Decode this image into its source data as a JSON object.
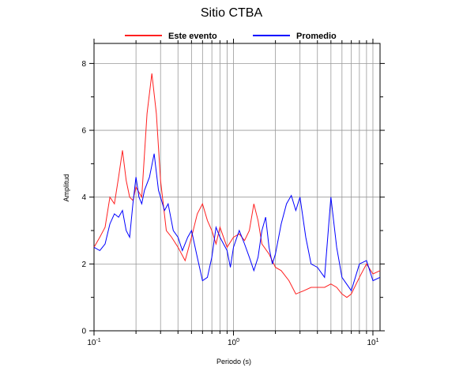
{
  "chart_data": {
    "type": "line",
    "title": "Sitio CTBA",
    "xlabel": "Periodo (s)",
    "ylabel": "Amplitud",
    "xscale": "log",
    "grid": true,
    "legend": "top",
    "xlim": [
      0.1,
      11.25
    ],
    "ylim": [
      0,
      8.6
    ],
    "xticks": [
      {
        "value": 0.1,
        "label": "10",
        "power": "-1"
      },
      {
        "value": 1,
        "label": "10",
        "power": "0"
      },
      {
        "value": 10,
        "label": "10",
        "power": "1"
      }
    ],
    "xminor": [
      0.2,
      0.3,
      0.4,
      0.5,
      0.6,
      0.7,
      0.8,
      0.9,
      2,
      3,
      4,
      5,
      6,
      7,
      8,
      9
    ],
    "yticks": [
      0,
      2,
      4,
      6,
      8
    ],
    "yminor": [
      1,
      3,
      5,
      7
    ],
    "series": [
      {
        "name": "Este evento",
        "color": "#ff2020",
        "x": [
          0.1,
          0.11,
          0.12,
          0.13,
          0.14,
          0.15,
          0.16,
          0.17,
          0.18,
          0.19,
          0.2,
          0.22,
          0.24,
          0.26,
          0.28,
          0.3,
          0.33,
          0.36,
          0.4,
          0.45,
          0.5,
          0.55,
          0.6,
          0.65,
          0.7,
          0.75,
          0.8,
          0.9,
          1.0,
          1.1,
          1.2,
          1.3,
          1.4,
          1.5,
          1.6,
          1.8,
          2.0,
          2.2,
          2.5,
          2.8,
          3.2,
          3.6,
          4.0,
          4.5,
          5.0,
          5.5,
          6.0,
          6.5,
          7,
          8,
          9,
          10,
          11.25
        ],
        "values": [
          2.5,
          2.8,
          3.1,
          4.0,
          3.8,
          4.6,
          5.4,
          4.5,
          4.0,
          3.9,
          4.3,
          4.0,
          6.5,
          7.7,
          6.5,
          4.5,
          3.0,
          2.8,
          2.5,
          2.1,
          2.8,
          3.5,
          3.8,
          3.3,
          3.0,
          2.6,
          3.1,
          2.5,
          2.8,
          2.9,
          2.7,
          3.0,
          3.8,
          3.3,
          2.6,
          2.3,
          1.9,
          1.8,
          1.5,
          1.1,
          1.2,
          1.3,
          1.3,
          1.3,
          1.4,
          1.3,
          1.1,
          1.0,
          1.1,
          1.6,
          2.0,
          1.7,
          1.8
        ]
      },
      {
        "name": "Promedio",
        "color": "#0000ff",
        "x": [
          0.1,
          0.11,
          0.12,
          0.13,
          0.14,
          0.15,
          0.16,
          0.17,
          0.18,
          0.19,
          0.2,
          0.21,
          0.22,
          0.23,
          0.25,
          0.27,
          0.29,
          0.3,
          0.32,
          0.34,
          0.37,
          0.4,
          0.43,
          0.47,
          0.5,
          0.55,
          0.6,
          0.65,
          0.7,
          0.75,
          0.8,
          0.9,
          0.95,
          1.0,
          1.1,
          1.2,
          1.3,
          1.4,
          1.5,
          1.6,
          1.7,
          1.8,
          1.9,
          2.0,
          2.2,
          2.4,
          2.6,
          2.8,
          3.0,
          3.3,
          3.6,
          4.0,
          4.5,
          5.0,
          5.5,
          6.0,
          7.0,
          8,
          9,
          10,
          11.25
        ],
        "values": [
          2.5,
          2.4,
          2.6,
          3.2,
          3.5,
          3.4,
          3.6,
          3.0,
          2.8,
          3.8,
          4.6,
          4.0,
          3.8,
          4.2,
          4.6,
          5.3,
          4.2,
          4.0,
          3.6,
          3.8,
          3.0,
          2.8,
          2.4,
          2.8,
          3.0,
          2.2,
          1.5,
          1.6,
          2.2,
          3.1,
          2.8,
          2.4,
          1.9,
          2.5,
          3.0,
          2.6,
          2.2,
          1.8,
          2.2,
          3.0,
          3.4,
          2.5,
          2.0,
          2.3,
          3.2,
          3.8,
          4.05,
          3.6,
          4.0,
          2.8,
          2.0,
          1.9,
          1.6,
          4.0,
          2.5,
          1.6,
          1.2,
          2.0,
          2.1,
          1.5,
          1.6
        ]
      }
    ]
  }
}
